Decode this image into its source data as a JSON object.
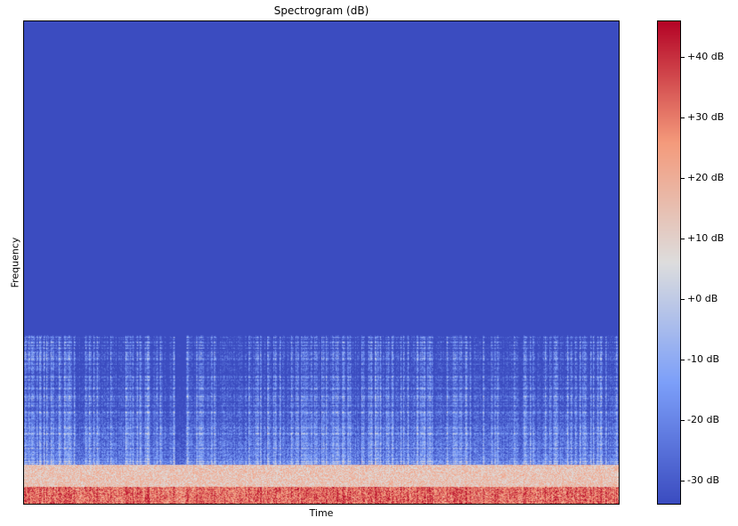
{
  "chart_data": {
    "type": "heatmap",
    "title": "Spectrogram (dB)",
    "xlabel": "Time",
    "ylabel": "Frequency",
    "colormap": "coolwarm",
    "colorbar": {
      "range": [
        -34,
        46
      ],
      "ticks": [
        -30,
        -20,
        -10,
        0,
        10,
        20,
        30,
        40
      ],
      "tick_labels": [
        "-30 dB",
        "-20 dB",
        "-10 dB",
        "+0 dB",
        "+10 dB",
        "+20 dB",
        "+30 dB",
        "+40 dB"
      ]
    },
    "description_values": {
      "floor_db": -34,
      "upper_band_fraction_empty": 0.65,
      "low_band_peak_db": 40
    },
    "x_tick_labels": [],
    "y_tick_labels": []
  }
}
